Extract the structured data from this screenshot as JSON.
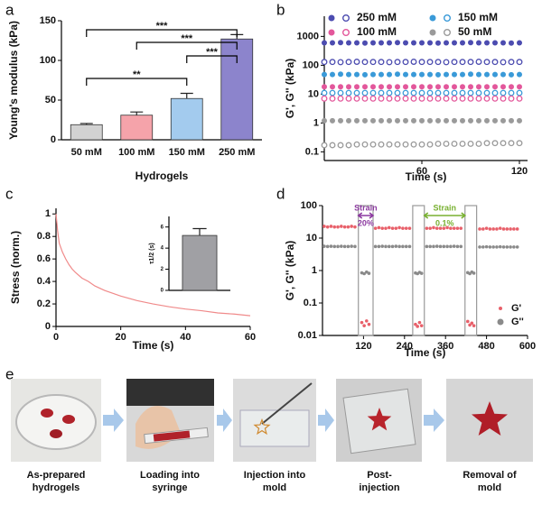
{
  "chart_data": [
    {
      "type": "bar",
      "label": "a",
      "xlabel": "Hydrogels",
      "ylabel": "Young's modulus (kPa)",
      "categories": [
        "50 mM",
        "100 mM",
        "150 mM",
        "250 mM"
      ],
      "values": [
        19,
        31,
        52,
        127
      ],
      "errors": [
        1.5,
        4,
        6.5,
        5.5
      ],
      "colors": [
        "#d2d2d2",
        "#f5a3aa",
        "#a3cbee",
        "#8c84cc"
      ],
      "ylim": [
        0,
        150
      ],
      "yticks": [
        0,
        50,
        100,
        150
      ],
      "annotations": [
        {
          "between": [
            0,
            3
          ],
          "text": "***"
        },
        {
          "between": [
            1,
            3
          ],
          "text": "***"
        },
        {
          "between": [
            2,
            3
          ],
          "text": "***"
        },
        {
          "between": [
            0,
            2
          ],
          "text": "**"
        }
      ]
    },
    {
      "type": "scatter",
      "label": "b",
      "xlabel": "Time (s)",
      "ylabel": "G', G'' (kPa)",
      "yscale": "log",
      "legend": "top",
      "xlim": [
        0,
        125
      ],
      "xticks": [
        60,
        120
      ],
      "ylim": [
        0.05,
        5000
      ],
      "yticks": [
        0.1,
        1,
        10,
        100,
        1000
      ],
      "x": [
        0,
        5,
        10,
        15,
        20,
        25,
        30,
        35,
        40,
        45,
        50,
        55,
        60,
        65,
        70,
        75,
        80,
        85,
        90,
        95,
        100,
        105,
        110,
        115,
        120
      ],
      "series": [
        {
          "name": "250 mM",
          "color": "#4c4cb0",
          "storage": [
            600,
            600,
            610,
            600,
            600,
            590,
            600,
            600,
            600,
            610,
            600,
            600,
            600,
            600,
            590,
            600,
            600,
            600,
            610,
            600,
            600,
            600,
            600,
            590,
            600
          ],
          "loss": [
            130,
            130,
            128,
            130,
            132,
            130,
            130,
            130,
            128,
            130,
            130,
            132,
            130,
            130,
            130,
            128,
            130,
            130,
            130,
            132,
            130,
            130,
            128,
            130,
            130
          ]
        },
        {
          "name": "150 mM",
          "color": "#3a9ad8",
          "storage": [
            48,
            48,
            49,
            48,
            48,
            47,
            48,
            48,
            48,
            49,
            48,
            48,
            48,
            48,
            47,
            48,
            48,
            48,
            49,
            48,
            48,
            48,
            48,
            47,
            48
          ],
          "loss": [
            11,
            11,
            11,
            11,
            11,
            11,
            11,
            11,
            11,
            11,
            11,
            11,
            11,
            11,
            11,
            11,
            11,
            11,
            11,
            11,
            11,
            11,
            11,
            11,
            11
          ]
        },
        {
          "name": "100 mM",
          "color": "#e3579b",
          "storage": [
            18,
            18,
            18,
            18,
            18,
            18,
            18,
            18,
            18,
            18,
            18,
            18,
            18,
            18,
            18,
            18,
            18,
            18,
            18,
            18,
            18,
            18,
            18,
            18,
            18
          ],
          "loss": [
            7,
            7,
            7,
            7,
            7,
            7,
            7,
            7,
            7,
            7,
            7,
            7,
            7,
            7,
            7,
            7,
            7,
            7,
            7,
            7,
            7,
            7,
            7,
            7,
            7
          ]
        },
        {
          "name": "50 mM",
          "color": "#9a9a9a",
          "storage": [
            1.2,
            1.2,
            1.2,
            1.2,
            1.2,
            1.2,
            1.2,
            1.2,
            1.2,
            1.2,
            1.2,
            1.2,
            1.2,
            1.2,
            1.2,
            1.2,
            1.2,
            1.2,
            1.2,
            1.2,
            1.2,
            1.2,
            1.2,
            1.2,
            1.2
          ],
          "loss": [
            0.17,
            0.17,
            0.17,
            0.17,
            0.18,
            0.18,
            0.18,
            0.18,
            0.18,
            0.18,
            0.18,
            0.18,
            0.18,
            0.18,
            0.19,
            0.19,
            0.19,
            0.19,
            0.19,
            0.19,
            0.2,
            0.2,
            0.2,
            0.2,
            0.2
          ]
        }
      ]
    },
    {
      "type": "line",
      "label": "c",
      "xlabel": "Time (s)",
      "ylabel": "Stress (norm.)",
      "color": "#f08a8a",
      "xlim": [
        0,
        60
      ],
      "xticks": [
        0,
        20,
        40,
        60
      ],
      "ylim": [
        0,
        1.05
      ],
      "yticks": [
        0,
        0.2,
        0.4,
        0.6,
        0.8,
        1
      ],
      "x": [
        0,
        0.5,
        1,
        2,
        3,
        4,
        5,
        6,
        8,
        10,
        12,
        15,
        18,
        20,
        25,
        30,
        35,
        40,
        45,
        50,
        55,
        60
      ],
      "values": [
        1,
        0.85,
        0.74,
        0.66,
        0.6,
        0.55,
        0.51,
        0.48,
        0.43,
        0.4,
        0.36,
        0.32,
        0.29,
        0.27,
        0.23,
        0.2,
        0.175,
        0.155,
        0.14,
        0.12,
        0.11,
        0.095
      ],
      "inset": {
        "type": "bar",
        "ylabel": "τ1/2 (s)",
        "values": [
          5.2
        ],
        "errors": [
          0.65
        ],
        "color": "#a0a0a4",
        "ylim": [
          0,
          7
        ],
        "yticks": [
          0,
          2,
          4,
          6
        ]
      }
    },
    {
      "type": "scatter",
      "label": "d",
      "xlabel": "Time (s)",
      "ylabel": "G', G'' (kPa)",
      "yscale": "log",
      "legend": "lower right",
      "xlim": [
        0,
        600
      ],
      "xticks": [
        120,
        240,
        360,
        480,
        600
      ],
      "ylim": [
        0.01,
        100
      ],
      "yticks": [
        0.01,
        0.1,
        1,
        10,
        100
      ],
      "strain_windows": [
        [
          105,
          148
        ],
        [
          264,
          298
        ],
        [
          417,
          451
        ]
      ],
      "annotations": [
        {
          "text": "Strain",
          "sub": "20%",
          "color": "#8c3aa0",
          "between": [
            105,
            148
          ]
        },
        {
          "text": "Strain",
          "sub": "0.1%",
          "color": "#78b030",
          "between": [
            298,
            417
          ]
        }
      ],
      "x": [
        5,
        15,
        25,
        35,
        45,
        55,
        65,
        75,
        85,
        95,
        115,
        122,
        129,
        136,
        155,
        165,
        175,
        185,
        195,
        205,
        215,
        225,
        235,
        245,
        255,
        272,
        278,
        284,
        290,
        305,
        315,
        325,
        335,
        345,
        355,
        365,
        375,
        385,
        395,
        405,
        425,
        431,
        437,
        443,
        460,
        470,
        480,
        490,
        500,
        510,
        520,
        530,
        540,
        550,
        560,
        570
      ],
      "series": [
        {
          "name": "G'",
          "color": "#e8606a",
          "values": [
            23,
            22,
            23,
            22,
            22,
            23,
            22,
            22,
            23,
            22,
            0.025,
            0.02,
            0.028,
            0.022,
            20,
            21,
            20,
            20,
            21,
            20,
            20,
            21,
            20,
            20,
            20,
            0.022,
            0.019,
            0.025,
            0.02,
            20,
            20,
            21,
            20,
            20,
            20,
            21,
            20,
            20,
            20,
            20,
            0.027,
            0.021,
            0.024,
            0.02,
            19,
            19,
            20,
            19,
            19,
            19,
            20,
            19,
            19,
            19,
            19,
            19
          ]
        },
        {
          "name": "G''",
          "color": "#8a8a8a",
          "values": [
            5.6,
            5.5,
            5.6,
            5.5,
            5.5,
            5.6,
            5.5,
            5.5,
            5.6,
            5.5,
            0.85,
            0.8,
            0.9,
            0.82,
            5.5,
            5.5,
            5.6,
            5.5,
            5.5,
            5.5,
            5.6,
            5.5,
            5.5,
            5.5,
            5.5,
            0.84,
            0.8,
            0.88,
            0.82,
            5.5,
            5.5,
            5.5,
            5.6,
            5.5,
            5.5,
            5.5,
            5.5,
            5.6,
            5.5,
            5.5,
            0.86,
            0.8,
            0.9,
            0.83,
            5.3,
            5.3,
            5.4,
            5.3,
            5.3,
            5.3,
            5.4,
            5.3,
            5.3,
            5.3,
            5.3,
            5.3
          ]
        }
      ]
    }
  ],
  "panel_e": {
    "label": "e",
    "steps": [
      [
        "As-prepared",
        "hydrogels"
      ],
      [
        "Loading into",
        "syringe"
      ],
      [
        "Injection into",
        "mold"
      ],
      [
        "Post-",
        "injection"
      ],
      [
        "Removal of",
        "mold"
      ]
    ]
  }
}
